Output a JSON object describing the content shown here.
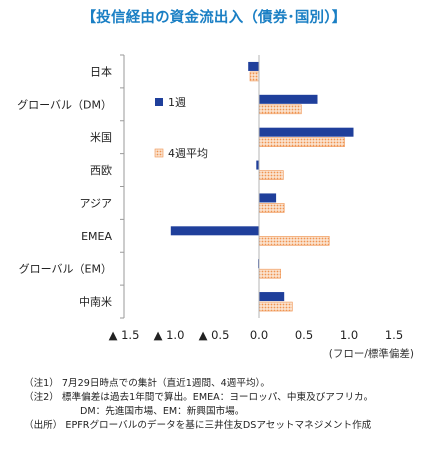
{
  "title": "【投信経由の資金流出入（債券･国別）】",
  "chart_data": {
    "type": "bar",
    "orientation": "horizontal",
    "categories": [
      "日本",
      "グローバル（DM）",
      "米国",
      "西欧",
      "アジア",
      "EMEA",
      "グローバル（EM）",
      "中南米"
    ],
    "series": [
      {
        "name": "1週",
        "values": [
          -0.12,
          0.65,
          1.05,
          -0.03,
          0.19,
          -0.98,
          -0.01,
          0.28
        ],
        "color": "#1f3f9b"
      },
      {
        "name": "4週平均",
        "values": [
          -0.1,
          0.47,
          0.95,
          0.27,
          0.28,
          0.78,
          0.24,
          0.37
        ],
        "color": "#f4a76a"
      }
    ],
    "xlim": [
      -1.5,
      1.5
    ],
    "xticks": [
      -1.5,
      -1.0,
      -0.5,
      0.0,
      0.5,
      1.0,
      1.5
    ],
    "xtick_labels": [
      "▲ 1.5",
      "▲ 1.0",
      "▲ 0.5",
      "0.0",
      "0.5",
      "1.0",
      "1.5"
    ],
    "xlabel": "(フロー/標準偏差)",
    "legend_position": "inside-left"
  },
  "notes": [
    "（注1） 7月29日時点での集計（直近1週間、4週平均）。",
    "（注2） 標準偏差は過去1年間で算出。EMEA：ヨーロッパ、中東及びアフリカ。",
    "DM：先進国市場、EM：新興国市場。",
    "（出所） EPFRグローバルのデータを基に三井住友DSアセットマネジメント作成"
  ]
}
